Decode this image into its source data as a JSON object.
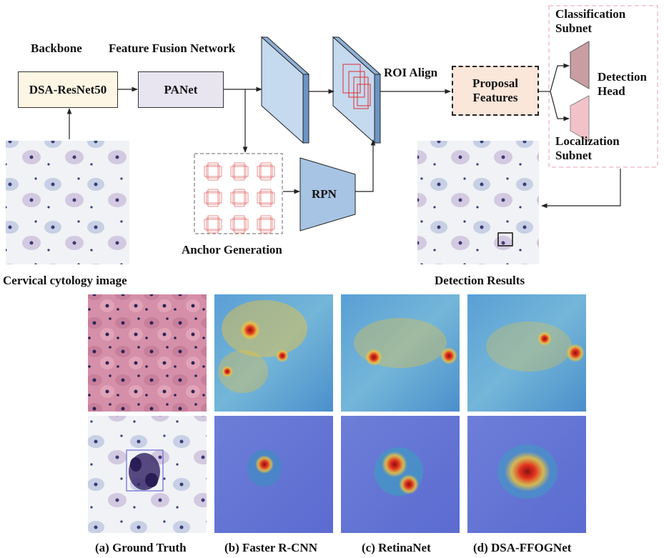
{
  "pipeline": {
    "backbone_label": "Backbone",
    "ffn_label": "Feature Fusion Network",
    "backbone_box": "DSA-ResNet50",
    "panet_box": "PANet",
    "roi_label": "ROI Align",
    "proposal_box": "Proposal Features",
    "classification_label": "Classification Subnet",
    "detection_head_label": "Detection Head",
    "localization_label": "Localization Subnet",
    "rpn_label": "RPN",
    "anchor_label": "Anchor Generation",
    "input_caption": "Cervical cytology image",
    "output_caption": "Detection Results"
  },
  "comparison": {
    "captions": [
      "(a) Ground Truth",
      "(b) Faster R-CNN",
      "(c) RetinaNet",
      "(d) DSA-FFOGNet"
    ]
  },
  "colors": {
    "backbone_fill": "#fdf6e4",
    "panet_fill": "#e8e4f0",
    "proposal_fill": "#fbe6da",
    "feature_map": "#c5d9ef",
    "rpn_fill": "#a7c4e4",
    "classification_trap": "#c99ea3",
    "localization_trap": "#f2c2c8",
    "head_border": "#f0c0c8",
    "anchor_border": "#999999",
    "wire": "#222222"
  }
}
